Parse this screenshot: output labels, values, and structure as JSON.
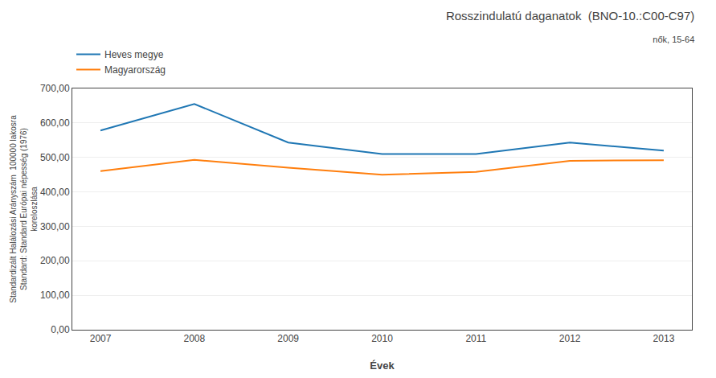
{
  "chart_data": {
    "type": "line",
    "title": "Rosszindulatú daganatok  (BNO-10.:C00-C97)",
    "subtitle": "nők, 15-64",
    "xlabel": "Évek",
    "ylabel": "Standardizált Halálozási Arányszám  100000 lakosra\nStandard: Standard Európai népesség (1976)\nkoreloszlása",
    "x": [
      2007,
      2008,
      2009,
      2010,
      2011,
      2012,
      2013
    ],
    "series": [
      {
        "name": "Heves megye",
        "values": [
          578,
          655,
          543,
          510,
          510,
          543,
          520
        ]
      },
      {
        "name": "Magyarország",
        "values": [
          460,
          493,
          470,
          450,
          458,
          490,
          492
        ]
      }
    ],
    "xlim": [
      2006.7,
      2013.3
    ],
    "xticks": [
      2007,
      2008,
      2009,
      2010,
      2011,
      2012,
      2013
    ],
    "ylim": [
      0,
      700
    ],
    "yticks": [
      {
        "value": 0,
        "label": "0,00"
      },
      {
        "value": 100,
        "label": "100,00"
      },
      {
        "value": 200,
        "label": "200,00"
      },
      {
        "value": 300,
        "label": "300,00"
      },
      {
        "value": 400,
        "label": "400,00"
      },
      {
        "value": 500,
        "label": "500,00"
      },
      {
        "value": 600,
        "label": "600,00"
      },
      {
        "value": 700,
        "label": "700,00"
      }
    ],
    "grid": true,
    "legend": "upper left"
  }
}
